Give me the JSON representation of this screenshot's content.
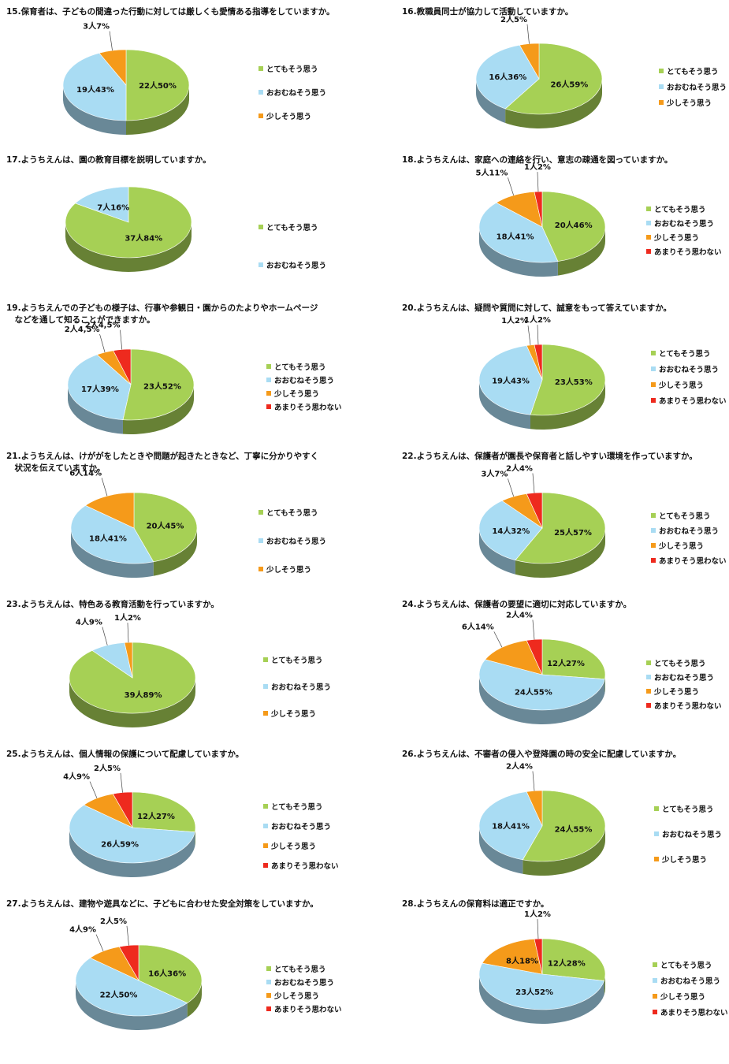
{
  "colors": {
    "とてもそう思う": "#a6d055",
    "おおむねそう思う": "#a9dcf3",
    "少しそう思う": "#f59a1a",
    "あまりそう思わない": "#ee2a1e"
  },
  "chart_data": [
    {
      "type": "pie",
      "title": "15.保育者は、子どもの間違った行動に対しては厳しくも愛情ある指導をしていますか。",
      "legend": [
        "とてもそう思う",
        "おおむねそう思う",
        "少しそう思う"
      ],
      "slices": [
        {
          "category": "とてもそう思う",
          "value": 50,
          "label": "22人50%"
        },
        {
          "category": "おおむねそう思う",
          "value": 43,
          "label": "19人43%"
        },
        {
          "category": "少しそう思う",
          "value": 7,
          "label": "3人7%"
        }
      ]
    },
    {
      "type": "pie",
      "title": "16.教職員同士が協力して活動していますか。",
      "legend": [
        "とてもそう思う",
        "おおむねそう思う",
        "少しそう思う"
      ],
      "slices": [
        {
          "category": "とてもそう思う",
          "value": 59,
          "label": "26人59%"
        },
        {
          "category": "おおむねそう思う",
          "value": 36,
          "label": "16人36%"
        },
        {
          "category": "少しそう思う",
          "value": 5,
          "label": "2人5%"
        }
      ]
    },
    {
      "type": "pie",
      "title": "17.ようちえんは、園の教育目標を説明していますか。",
      "legend": [
        "とてもそう思う",
        "おおむねそう思う"
      ],
      "slices": [
        {
          "category": "とてもそう思う",
          "value": 84,
          "label": "37人84%"
        },
        {
          "category": "おおむねそう思う",
          "value": 16,
          "label": "7人16%"
        }
      ]
    },
    {
      "type": "pie",
      "title": "18.ようちえんは、家庭への連絡を行い、意志の疎通を図っていますか。",
      "legend": [
        "とてもそう思う",
        "おおむねそう思う",
        "少しそう思う",
        "あまりそう思わない"
      ],
      "slices": [
        {
          "category": "とてもそう思う",
          "value": 46,
          "label": "20人46%"
        },
        {
          "category": "おおむねそう思う",
          "value": 41,
          "label": "18人41%"
        },
        {
          "category": "少しそう思う",
          "value": 11,
          "label": "5人11%"
        },
        {
          "category": "あまりそう思わない",
          "value": 2,
          "label": "1人2%"
        }
      ]
    },
    {
      "type": "pie",
      "title": "19.ようちえんでの子どもの様子は、行事や参観日・園からのたよりやホームページ\n　などを通して知ることができますか。",
      "legend": [
        "とてもそう思う",
        "おおむねそう思う",
        "少しそう思う",
        "あまりそう思わない"
      ],
      "slices": [
        {
          "category": "とてもそう思う",
          "value": 52,
          "label": "23人52%"
        },
        {
          "category": "おおむねそう思う",
          "value": 39,
          "label": "17人39%"
        },
        {
          "category": "少しそう思う",
          "value": 4.5,
          "label": "2人4,5%"
        },
        {
          "category": "あまりそう思わない",
          "value": 4.5,
          "label": "2人4,5%"
        }
      ]
    },
    {
      "type": "pie",
      "title": "20.ようちえんは、疑問や質問に対して、誠意をもって答えていますか。",
      "legend": [
        "とてもそう思う",
        "おおむねそう思う",
        "少しそう思う",
        "あまりそう思わない"
      ],
      "slices": [
        {
          "category": "とてもそう思う",
          "value": 53,
          "label": "23人53%"
        },
        {
          "category": "おおむねそう思う",
          "value": 43,
          "label": "19人43%"
        },
        {
          "category": "少しそう思う",
          "value": 2,
          "label": "1人2%"
        },
        {
          "category": "あまりそう思わない",
          "value": 2,
          "label": "1人2%"
        }
      ]
    },
    {
      "type": "pie",
      "title": "21.ようちえんは、けががをしたときや問題が起きたときなど、丁寧に分かりやすく\n　状況を伝えていますか。",
      "legend": [
        "とてもそう思う",
        "おおむねそう思う",
        "少しそう思う"
      ],
      "slices": [
        {
          "category": "とてもそう思う",
          "value": 45,
          "label": "20人45%"
        },
        {
          "category": "おおむねそう思う",
          "value": 41,
          "label": "18人41%"
        },
        {
          "category": "少しそう思う",
          "value": 14,
          "label": "6人14%"
        }
      ]
    },
    {
      "type": "pie",
      "title": "22.ようちえんは、保護者が園長や保育者と話しやすい環境を作っていますか。",
      "legend": [
        "とてもそう思う",
        "おおむねそう思う",
        "少しそう思う",
        "あまりそう思わない"
      ],
      "slices": [
        {
          "category": "とてもそう思う",
          "value": 57,
          "label": "25人57%"
        },
        {
          "category": "おおむねそう思う",
          "value": 32,
          "label": "14人32%"
        },
        {
          "category": "少しそう思う",
          "value": 7,
          "label": "3人7%"
        },
        {
          "category": "あまりそう思わない",
          "value": 4,
          "label": "2人4%"
        }
      ]
    },
    {
      "type": "pie",
      "title": "23.ようちえんは、特色ある教育活動を行っていますか。",
      "legend": [
        "とてもそう思う",
        "おおむねそう思う",
        "少しそう思う"
      ],
      "slices": [
        {
          "category": "とてもそう思う",
          "value": 89,
          "label": "39人89%"
        },
        {
          "category": "おおむねそう思う",
          "value": 9,
          "label": "4人9%"
        },
        {
          "category": "少しそう思う",
          "value": 2,
          "label": "1人2%"
        }
      ]
    },
    {
      "type": "pie",
      "title": "24.ようちえんは、保護者の要望に適切に対応していますか。",
      "legend": [
        "とてもそう思う",
        "おおむねそう思う",
        "少しそう思う",
        "あまりそう思わない"
      ],
      "slices": [
        {
          "category": "とてもそう思う",
          "value": 27,
          "label": "12人27%"
        },
        {
          "category": "おおむねそう思う",
          "value": 55,
          "label": "24人55%"
        },
        {
          "category": "少しそう思う",
          "value": 14,
          "label": "6人14%"
        },
        {
          "category": "あまりそう思わない",
          "value": 4,
          "label": "2人4%"
        }
      ]
    },
    {
      "type": "pie",
      "title": "25.ようちえんは、個人情報の保護について配慮していますか。",
      "legend": [
        "とてもそう思う",
        "おおむねそう思う",
        "少しそう思う",
        "あまりそう思わない"
      ],
      "slices": [
        {
          "category": "とてもそう思う",
          "value": 27,
          "label": "12人27%"
        },
        {
          "category": "おおむねそう思う",
          "value": 59,
          "label": "26人59%"
        },
        {
          "category": "少しそう思う",
          "value": 9,
          "label": "4人9%"
        },
        {
          "category": "あまりそう思わない",
          "value": 5,
          "label": "2人5%"
        }
      ]
    },
    {
      "type": "pie",
      "title": "26.ようちえんは、不審者の侵入や登降園の時の安全に配慮していますか。",
      "legend": [
        "とてもそう思う",
        "おおむねそう思う",
        "少しそう思う"
      ],
      "slices": [
        {
          "category": "とてもそう思う",
          "value": 55,
          "label": "24人55%"
        },
        {
          "category": "おおむねそう思う",
          "value": 41,
          "label": "18人41%"
        },
        {
          "category": "少しそう思う",
          "value": 4,
          "label": "2人4%"
        }
      ]
    },
    {
      "type": "pie",
      "title": "27.ようちえんは、建物や遊具などに、子どもに合わせた安全対策をしていますか。",
      "legend": [
        "とてもそう思う",
        "おおむねそう思う",
        "少しそう思う",
        "あまりそう思わない"
      ],
      "slices": [
        {
          "category": "とてもそう思う",
          "value": 36,
          "label": "16人36%"
        },
        {
          "category": "おおむねそう思う",
          "value": 50,
          "label": "22人50%"
        },
        {
          "category": "少しそう思う",
          "value": 9,
          "label": "4人9%"
        },
        {
          "category": "あまりそう思わない",
          "value": 5,
          "label": "2人5%"
        }
      ]
    },
    {
      "type": "pie",
      "title": "28.ようちえんの保育料は適正ですか。",
      "legend": [
        "とてもそう思う",
        "おおむねそう思う",
        "少しそう思う",
        "あまりそう思わない"
      ],
      "slices": [
        {
          "category": "とてもそう思う",
          "value": 28,
          "label": "12人28%"
        },
        {
          "category": "おおむねそう思う",
          "value": 52,
          "label": "23人52%"
        },
        {
          "category": "少しそう思う",
          "value": 18,
          "label": "8人18%"
        },
        {
          "category": "あまりそう思わない",
          "value": 2,
          "label": "1人2%"
        }
      ]
    }
  ]
}
